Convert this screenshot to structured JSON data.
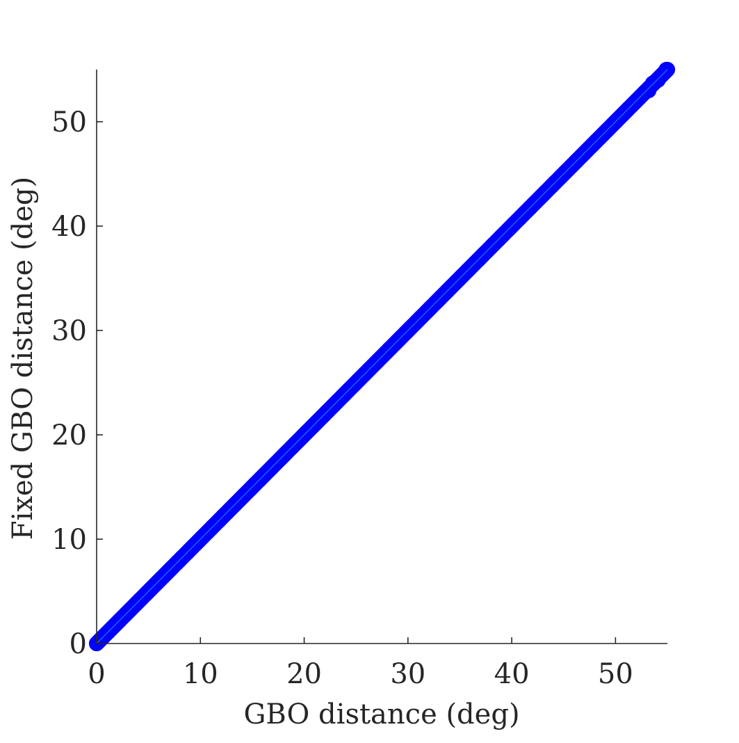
{
  "chart_data": {
    "type": "scatter",
    "title": "",
    "xlabel": "GBO distance (deg)",
    "ylabel": "Fixed GBO distance (deg)",
    "xlim": [
      0,
      55
    ],
    "ylim": [
      0,
      55
    ],
    "xticks": [
      0,
      10,
      20,
      30,
      40,
      50
    ],
    "yticks": [
      0,
      10,
      20,
      30,
      40,
      50
    ],
    "xtick_labels": [
      "0",
      "10",
      "20",
      "30",
      "40",
      "50"
    ],
    "ytick_labels": [
      "0",
      "10",
      "20",
      "30",
      "40",
      "50"
    ],
    "grid": false,
    "legend": false,
    "marker": "open-circle",
    "series": [
      {
        "color": "#0000ff",
        "relation": "y = x",
        "x_range": [
          0,
          55
        ],
        "points": [
          [
            0,
            0
          ],
          [
            0.5,
            0.5
          ],
          [
            1.0,
            1.0
          ],
          [
            1.5,
            1.5
          ],
          [
            2.0,
            2.0
          ],
          [
            3,
            3
          ],
          [
            4,
            4
          ],
          [
            5,
            5
          ],
          [
            6,
            6
          ],
          [
            7,
            7
          ],
          [
            8,
            8
          ],
          [
            9,
            9
          ],
          [
            10,
            10
          ],
          [
            11,
            11
          ],
          [
            12,
            12
          ],
          [
            13,
            13
          ],
          [
            14,
            14
          ],
          [
            15,
            15
          ],
          [
            16,
            16
          ],
          [
            17,
            17
          ],
          [
            18,
            18
          ],
          [
            19,
            19
          ],
          [
            20,
            20
          ],
          [
            21,
            21
          ],
          [
            22,
            22
          ],
          [
            23,
            23
          ],
          [
            24,
            24
          ],
          [
            25,
            25
          ],
          [
            26,
            26
          ],
          [
            27,
            27
          ],
          [
            28,
            28
          ],
          [
            29,
            29
          ],
          [
            30,
            30
          ],
          [
            31,
            31
          ],
          [
            32,
            32
          ],
          [
            33,
            33
          ],
          [
            34,
            34
          ],
          [
            35,
            35
          ],
          [
            36,
            36
          ],
          [
            37,
            37
          ],
          [
            38,
            38
          ],
          [
            39,
            39
          ],
          [
            40,
            40
          ],
          [
            41,
            41
          ],
          [
            42,
            42
          ],
          [
            43,
            43
          ],
          [
            44,
            44
          ],
          [
            45,
            45
          ],
          [
            46,
            46
          ],
          [
            47,
            47
          ],
          [
            48,
            48
          ],
          [
            49,
            49
          ],
          [
            50,
            50
          ],
          [
            51,
            51
          ],
          [
            52,
            52
          ],
          [
            52.8,
            52.8
          ],
          [
            53.7,
            53.7
          ],
          [
            54.8,
            54.8
          ],
          [
            55,
            55
          ]
        ]
      }
    ],
    "reference_line": {
      "color": "#19b3cc",
      "relation": "y = x"
    }
  }
}
